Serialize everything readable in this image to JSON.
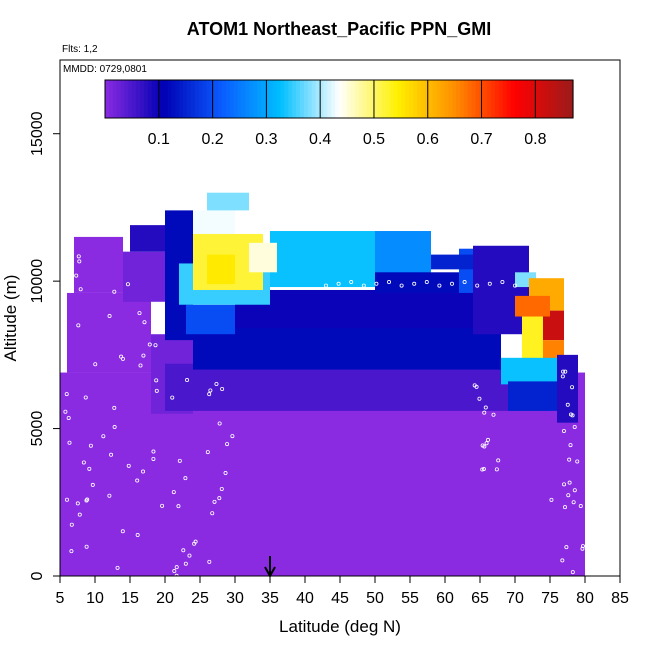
{
  "chart_data": {
    "type": "heatmap",
    "title": "ATOM1 Northeast_Pacific PPN_GMI",
    "subtitle_flts": "Flts: 1,2",
    "subtitle_mmdd": "MMDD: 0729,0801",
    "xlabel": "Latitude (deg N)",
    "ylabel": "Altitude (m)",
    "xlim": [
      5,
      85
    ],
    "ylim": [
      0,
      17500
    ],
    "x_ticks": [
      "5",
      "10",
      "15",
      "20",
      "25",
      "30",
      "35",
      "40",
      "45",
      "50",
      "55",
      "60",
      "65",
      "70",
      "75",
      "80",
      "85"
    ],
    "y_ticks": [
      "0",
      "5000",
      "10000",
      "15000"
    ],
    "colorbar": {
      "range": [
        0,
        0.87
      ],
      "ticks": [
        "0.1",
        "0.2",
        "0.3",
        "0.4",
        "0.5",
        "0.6",
        "0.7",
        "0.8"
      ],
      "colors": [
        "#8a2be2",
        "#0000b3",
        "#0a5cff",
        "#00bfff",
        "#ffffff",
        "#fff000",
        "#ff8c00",
        "#ff0000",
        "#9b1b1b"
      ]
    },
    "marker_latitude": 35,
    "regions": [
      {
        "lat": [
          5,
          80
        ],
        "alt": [
          0,
          6900
        ],
        "value": 0.0
      },
      {
        "lat": [
          6,
          18
        ],
        "alt": [
          6900,
          9600
        ],
        "value": 0.0
      },
      {
        "lat": [
          7,
          14
        ],
        "alt": [
          9600,
          11500
        ],
        "value": 0.0
      },
      {
        "lat": [
          14,
          20
        ],
        "alt": [
          9300,
          11000
        ],
        "value": 0.02
      },
      {
        "lat": [
          15,
          20
        ],
        "alt": [
          11000,
          11900
        ],
        "value": 0.08
      },
      {
        "lat": [
          18,
          24
        ],
        "alt": [
          5500,
          8200
        ],
        "value": 0.02
      },
      {
        "lat": [
          20,
          75
        ],
        "alt": [
          5600,
          7200
        ],
        "value": 0.05
      },
      {
        "lat": [
          24,
          68
        ],
        "alt": [
          7000,
          8500
        ],
        "value": 0.12
      },
      {
        "lat": [
          20,
          24
        ],
        "alt": [
          8000,
          12400
        ],
        "value": 0.12
      },
      {
        "lat": [
          23,
          30
        ],
        "alt": [
          8200,
          9200
        ],
        "value": 0.2
      },
      {
        "lat": [
          30,
          68
        ],
        "alt": [
          8400,
          9700
        ],
        "value": 0.1
      },
      {
        "lat": [
          22,
          35
        ],
        "alt": [
          9200,
          10600
        ],
        "value": 0.35
      },
      {
        "lat": [
          35,
          50
        ],
        "alt": [
          9800,
          11700
        ],
        "value": 0.33
      },
      {
        "lat": [
          50,
          58
        ],
        "alt": [
          10100,
          11700
        ],
        "value": 0.27
      },
      {
        "lat": [
          50,
          68
        ],
        "alt": [
          9600,
          10300
        ],
        "value": 0.12
      },
      {
        "lat": [
          62,
          68
        ],
        "alt": [
          9600,
          11100
        ],
        "value": 0.2
      },
      {
        "lat": [
          24,
          30
        ],
        "alt": [
          11200,
          12400
        ],
        "value": 0.43
      },
      {
        "lat": [
          24,
          34
        ],
        "alt": [
          9700,
          11600
        ],
        "value": 0.52
      },
      {
        "lat": [
          26,
          30
        ],
        "alt": [
          9900,
          10900
        ],
        "value": 0.55
      },
      {
        "lat": [
          32,
          36
        ],
        "alt": [
          10300,
          11300
        ],
        "value": 0.45
      },
      {
        "lat": [
          26,
          32
        ],
        "alt": [
          12400,
          13000
        ],
        "value": 0.38
      },
      {
        "lat": [
          58,
          66
        ],
        "alt": [
          10400,
          10900
        ],
        "value": 0.15
      },
      {
        "lat": [
          64,
          72
        ],
        "alt": [
          8200,
          11200
        ],
        "value": 0.08
      },
      {
        "lat": [
          70,
          73
        ],
        "alt": [
          9800,
          10300
        ],
        "value": 0.38
      },
      {
        "lat": [
          72,
          77
        ],
        "alt": [
          9000,
          10100
        ],
        "value": 0.62
      },
      {
        "lat": [
          71,
          74
        ],
        "alt": [
          7300,
          9000
        ],
        "value": 0.53
      },
      {
        "lat": [
          74,
          77
        ],
        "alt": [
          8000,
          9000
        ],
        "value": 0.82
      },
      {
        "lat": [
          74,
          77
        ],
        "alt": [
          7300,
          8000
        ],
        "value": 0.66
      },
      {
        "lat": [
          68,
          77
        ],
        "alt": [
          6500,
          7400
        ],
        "value": 0.33
      },
      {
        "lat": [
          69,
          78
        ],
        "alt": [
          5600,
          6600
        ],
        "value": 0.15
      },
      {
        "lat": [
          76,
          79
        ],
        "alt": [
          5200,
          7500
        ],
        "value": 0.08
      },
      {
        "lat": [
          70,
          75
        ],
        "alt": [
          8800,
          9500
        ],
        "value": 0.68
      }
    ]
  }
}
